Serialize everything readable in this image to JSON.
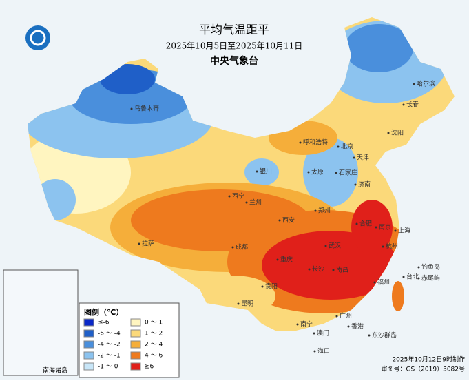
{
  "header": {
    "title": "平均气温距平",
    "subtitle": "2025年10月5日至2025年10月11日",
    "agency": "中央气象台"
  },
  "legend": {
    "title": "图例（℃）",
    "items": [
      {
        "label": "≤-6",
        "color": "#0a28c8"
      },
      {
        "label": "0 ～ 1",
        "color": "#fff5c0"
      },
      {
        "label": "-6 ～ -4",
        "color": "#1f5fc8"
      },
      {
        "label": "1 ～ 2",
        "color": "#fbd97a"
      },
      {
        "label": "-4 ～ -2",
        "color": "#4a8fdc"
      },
      {
        "label": "2 ～ 4",
        "color": "#f5ae3a"
      },
      {
        "label": "-2 ～ -1",
        "color": "#8cc3ef"
      },
      {
        "label": "4 ～ 6",
        "color": "#ee7a1e"
      },
      {
        "label": "-1 ～ 0",
        "color": "#c8e6f8"
      },
      {
        "label": "≥6",
        "color": "#e0201a"
      }
    ]
  },
  "cities": [
    "乌鲁木齐",
    "哈尔滨",
    "长春",
    "沈阳",
    "呼和浩特",
    "北京",
    "天津",
    "石家庄",
    "太原",
    "济南",
    "银川",
    "西宁",
    "兰州",
    "西安",
    "郑州",
    "合肥",
    "南京",
    "上海",
    "杭州",
    "武汉",
    "成都",
    "重庆",
    "长沙",
    "南昌",
    "福州",
    "拉萨",
    "贵阳",
    "昆明",
    "南宁",
    "广州",
    "香港",
    "澳门",
    "海口",
    "台北",
    "东沙群岛",
    "钓鱼岛",
    "赤尾屿"
  ],
  "inset_label": "南海诸岛",
  "footer": {
    "made": "2025年10月12日9时制作",
    "review": "审图号：GS（2019）3082号"
  }
}
